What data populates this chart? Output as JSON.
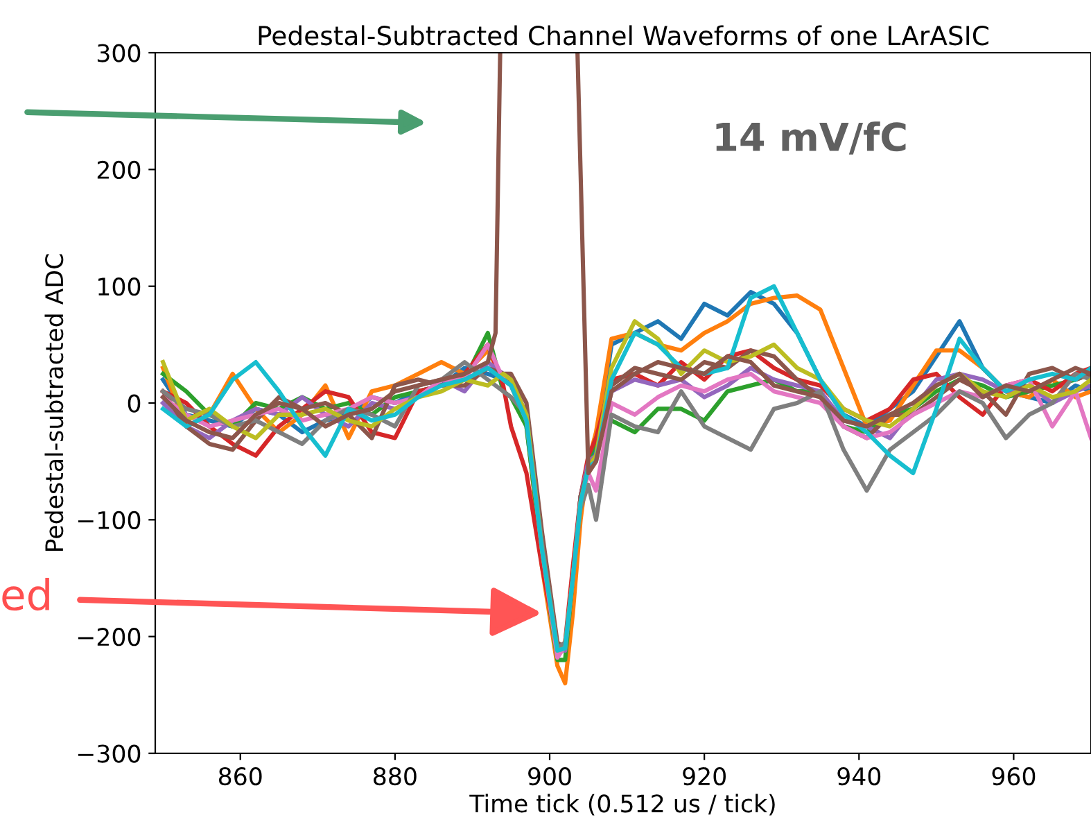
{
  "chart_data": {
    "type": "line",
    "title": "Pedestal-Subtracted Channel Waveforms of one LArASIC",
    "xlabel": "Time tick (0.512 us / tick)",
    "ylabel": "Pedestal-subtracted ADC",
    "annotations": [
      "14 mV/fC",
      {
        "text": "ed",
        "x": 899,
        "y": -180
      }
    ],
    "xlim": [
      849,
      970
    ],
    "ylim": [
      -300,
      300
    ],
    "xticks": [
      860,
      880,
      900,
      920,
      940,
      960
    ],
    "yticks": [
      -300,
      -200,
      -100,
      0,
      100,
      200,
      300
    ],
    "grid": false,
    "line_style": "solid",
    "marker": "none",
    "x": [
      850,
      853,
      856,
      859,
      862,
      865,
      868,
      871,
      874,
      877,
      880,
      883,
      886,
      889,
      892,
      894,
      895,
      897,
      899,
      901,
      902,
      903,
      904,
      905,
      906,
      908,
      911,
      914,
      917,
      920,
      923,
      926,
      929,
      932,
      935,
      938,
      941,
      944,
      947,
      950,
      953,
      956,
      959,
      962,
      965,
      968,
      970
    ],
    "series": [
      {
        "color": "#1f77b4",
        "values": [
          20,
          -10,
          -15,
          -20,
          -5,
          -10,
          -25,
          -15,
          -10,
          5,
          0,
          10,
          15,
          30,
          25,
          20,
          18,
          -20,
          -130,
          -215,
          -210,
          -150,
          -80,
          -50,
          -40,
          50,
          60,
          70,
          55,
          85,
          75,
          95,
          85,
          60,
          20,
          -10,
          -20,
          -5,
          10,
          40,
          70,
          30,
          10,
          5,
          0,
          15,
          10
        ]
      },
      {
        "color": "#ff7f0e",
        "values": [
          30,
          -20,
          -10,
          25,
          -5,
          -25,
          -10,
          15,
          -30,
          10,
          15,
          25,
          35,
          25,
          45,
          20,
          15,
          -15,
          -140,
          -225,
          -240,
          -180,
          -100,
          -50,
          -25,
          55,
          60,
          50,
          45,
          60,
          70,
          85,
          90,
          92,
          80,
          30,
          -20,
          -15,
          15,
          45,
          45,
          30,
          10,
          5,
          20,
          5,
          10
        ]
      },
      {
        "color": "#2ca02c",
        "values": [
          25,
          10,
          -10,
          -20,
          0,
          -5,
          5,
          -5,
          0,
          -10,
          5,
          10,
          15,
          20,
          60,
          10,
          5,
          -20,
          -130,
          -220,
          -220,
          -150,
          -80,
          -50,
          -30,
          -15,
          -25,
          -5,
          -5,
          -15,
          10,
          15,
          20,
          10,
          10,
          -20,
          -25,
          -10,
          -5,
          10,
          20,
          15,
          5,
          10,
          15,
          20,
          25
        ]
      },
      {
        "color": "#d62728",
        "values": [
          10,
          0,
          -20,
          -35,
          -45,
          -20,
          -5,
          10,
          5,
          -25,
          -30,
          10,
          15,
          25,
          50,
          15,
          -20,
          -60,
          -140,
          -210,
          -205,
          -140,
          -80,
          -45,
          -30,
          20,
          25,
          15,
          35,
          20,
          40,
          45,
          30,
          20,
          15,
          -5,
          -15,
          -5,
          20,
          25,
          5,
          -10,
          15,
          20,
          10,
          25,
          30
        ]
      },
      {
        "color": "#9467bd",
        "values": [
          0,
          -20,
          -30,
          -15,
          -5,
          -10,
          5,
          -10,
          -20,
          0,
          -5,
          5,
          20,
          10,
          35,
          25,
          20,
          -10,
          -120,
          -210,
          -212,
          -150,
          -80,
          -50,
          -45,
          10,
          20,
          15,
          20,
          5,
          15,
          30,
          20,
          15,
          10,
          -15,
          -20,
          -30,
          -5,
          20,
          25,
          20,
          10,
          15,
          0,
          10,
          15
        ]
      },
      {
        "color": "#8c564b",
        "values": [
          10,
          -20,
          -35,
          -40,
          -15,
          5,
          -5,
          0,
          -10,
          -30,
          15,
          20,
          15,
          15,
          30,
          25,
          25,
          0,
          -110,
          -205,
          -210,
          -150,
          -80,
          -55,
          -45,
          15,
          30,
          25,
          20,
          35,
          30,
          45,
          40,
          20,
          5,
          -20,
          -30,
          -10,
          -10,
          5,
          20,
          10,
          -10,
          25,
          30,
          20,
          25
        ]
      },
      {
        "color": "#e377c2",
        "values": [
          5,
          -10,
          -20,
          -15,
          -10,
          -5,
          -15,
          -10,
          -5,
          5,
          0,
          5,
          20,
          20,
          50,
          20,
          15,
          -15,
          -125,
          -218,
          -208,
          -150,
          -85,
          -60,
          -75,
          0,
          -10,
          5,
          15,
          10,
          20,
          25,
          10,
          5,
          0,
          -20,
          -30,
          -25,
          -10,
          0,
          10,
          5,
          15,
          20,
          -20,
          10,
          -30
        ]
      },
      {
        "color": "#7f7f7f",
        "values": [
          10,
          -5,
          -10,
          -20,
          -15,
          -25,
          -35,
          -15,
          -5,
          -10,
          -20,
          15,
          20,
          35,
          20,
          10,
          5,
          -10,
          -120,
          -210,
          -205,
          -150,
          -90,
          -70,
          -100,
          -10,
          -20,
          -25,
          10,
          -20,
          -30,
          -40,
          -5,
          0,
          10,
          -40,
          -75,
          -40,
          -25,
          -10,
          10,
          0,
          -30,
          -10,
          0,
          25,
          20
        ]
      },
      {
        "color": "#bcbd22",
        "values": [
          35,
          -15,
          -5,
          -20,
          -30,
          -10,
          -10,
          -5,
          -15,
          -20,
          -5,
          5,
          10,
          20,
          15,
          25,
          20,
          -10,
          -125,
          -212,
          -210,
          -150,
          -85,
          -55,
          -45,
          30,
          70,
          55,
          25,
          45,
          35,
          40,
          50,
          30,
          20,
          -5,
          -15,
          -20,
          -5,
          15,
          25,
          10,
          5,
          15,
          5,
          10,
          20
        ]
      },
      {
        "color": "#17becf",
        "values": [
          -5,
          -20,
          -10,
          20,
          35,
          10,
          -20,
          -45,
          -5,
          -15,
          -10,
          5,
          15,
          20,
          30,
          20,
          15,
          -15,
          -125,
          -212,
          -210,
          -150,
          -85,
          -55,
          -50,
          20,
          60,
          50,
          30,
          25,
          30,
          90,
          100,
          60,
          20,
          -10,
          -25,
          -45,
          -60,
          -5,
          55,
          30,
          10,
          20,
          25,
          20,
          30
        ]
      },
      {
        "color": "#8c564b",
        "x": [
          850,
          853,
          856,
          859,
          862,
          865,
          868,
          871,
          874,
          877,
          880,
          883,
          886,
          889,
          892,
          893,
          893.6,
          898,
          903.6,
          905,
          906,
          908,
          911,
          914,
          917,
          920,
          923,
          926,
          929,
          932,
          935,
          938,
          941,
          944,
          947,
          950,
          953,
          956,
          959,
          962,
          965,
          968,
          970
        ],
        "values": [
          5,
          -15,
          -25,
          -30,
          -10,
          0,
          -5,
          -20,
          -10,
          -5,
          10,
          15,
          20,
          25,
          35,
          60,
          300,
          null,
          300,
          -60,
          -50,
          10,
          25,
          35,
          30,
          25,
          40,
          35,
          15,
          10,
          5,
          -15,
          -20,
          -10,
          0,
          15,
          25,
          5,
          15,
          10,
          20,
          30,
          25
        ]
      }
    ]
  }
}
